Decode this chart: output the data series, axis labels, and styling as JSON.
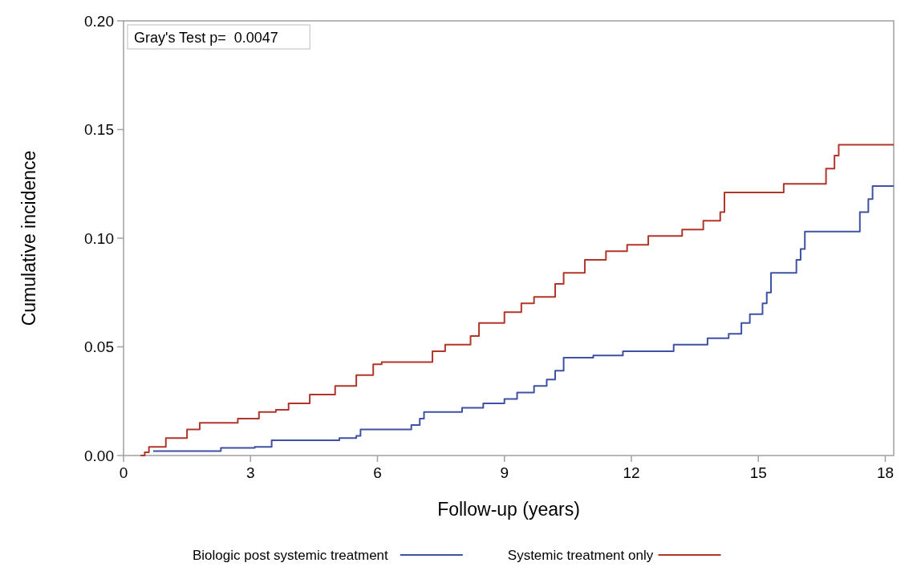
{
  "chart_data": {
    "type": "step",
    "xlabel": "Follow-up (years)",
    "ylabel": "Cumulative incidence",
    "xlim": [
      0,
      18.2
    ],
    "xticks": [
      0,
      3,
      6,
      9,
      12,
      15,
      18
    ],
    "ylim": [
      0,
      0.2
    ],
    "yticks": [
      {
        "value": 0,
        "label": "0.00"
      },
      {
        "value": 0.05,
        "label": "0.05"
      },
      {
        "value": 0.1,
        "label": "0.10"
      },
      {
        "value": 0.15,
        "label": "0.15"
      },
      {
        "value": 0.2,
        "label": "0.20"
      }
    ],
    "annotations": [
      "Gray's Test p=  0.0047"
    ],
    "legend": "bottom",
    "grid": false,
    "series": [
      {
        "name": "Biologic post systemic treatment",
        "color": "#3f51a3",
        "x": [
          0.7,
          2.3,
          3.1,
          3.5,
          5.1,
          5.5,
          5.6,
          6.8,
          7.0,
          7.1,
          8.0,
          8.5,
          9.0,
          9.3,
          9.7,
          10.0,
          10.2,
          10.4,
          11.1,
          11.8,
          13.0,
          13.8,
          14.3,
          14.6,
          14.8,
          15.1,
          15.2,
          15.3,
          15.9,
          16.0,
          16.1,
          17.4,
          17.6,
          17.7,
          18.2
        ],
        "values": [
          0.002,
          0.0035,
          0.004,
          0.007,
          0.008,
          0.009,
          0.012,
          0.014,
          0.017,
          0.02,
          0.022,
          0.024,
          0.026,
          0.029,
          0.032,
          0.035,
          0.039,
          0.045,
          0.046,
          0.048,
          0.051,
          0.054,
          0.056,
          0.061,
          0.065,
          0.07,
          0.075,
          0.084,
          0.09,
          0.095,
          0.103,
          0.112,
          0.118,
          0.124,
          0.124
        ]
      },
      {
        "name": "Systemic treatment only",
        "color": "#b0362b",
        "x": [
          0.4,
          0.5,
          0.6,
          1.0,
          1.5,
          1.8,
          2.7,
          3.2,
          3.6,
          3.9,
          4.4,
          5.0,
          5.5,
          5.9,
          6.1,
          7.3,
          7.6,
          8.2,
          8.4,
          9.0,
          9.4,
          9.7,
          10.2,
          10.4,
          10.9,
          11.4,
          11.9,
          12.4,
          13.2,
          13.7,
          14.1,
          14.2,
          15.6,
          16.6,
          16.8,
          16.9,
          18.2
        ],
        "values": [
          0.0,
          0.0015,
          0.004,
          0.008,
          0.012,
          0.015,
          0.017,
          0.02,
          0.021,
          0.024,
          0.028,
          0.032,
          0.037,
          0.042,
          0.043,
          0.048,
          0.051,
          0.055,
          0.061,
          0.066,
          0.07,
          0.073,
          0.079,
          0.084,
          0.09,
          0.094,
          0.097,
          0.101,
          0.104,
          0.108,
          0.112,
          0.121,
          0.125,
          0.132,
          0.138,
          0.143,
          0.143
        ]
      }
    ]
  }
}
